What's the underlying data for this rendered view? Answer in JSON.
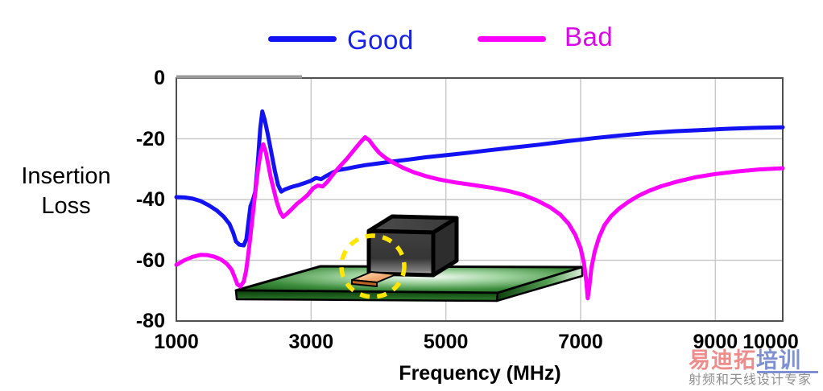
{
  "legend": {
    "items": [
      {
        "label": "Good",
        "color": "#1212f2",
        "label_color": "#1520ea"
      },
      {
        "label": "Bad",
        "color": "#fb00fb",
        "label_color": "#d90ae8"
      }
    ]
  },
  "axes": {
    "ylabel_line1": "Insertion",
    "ylabel_line2": "Loss",
    "xlabel": "Frequency (MHz)"
  },
  "chart_data": {
    "type": "line",
    "title": "",
    "xlabel": "Frequency (MHz)",
    "ylabel": "Insertion Loss",
    "xlim": [
      1000,
      10000
    ],
    "ylim": [
      -80,
      0
    ],
    "x_ticks": [
      1000,
      3000,
      5000,
      7000,
      9000,
      10000
    ],
    "y_ticks": [
      0,
      -20,
      -40,
      -60,
      -80
    ],
    "grid": true,
    "legend_position": "top",
    "series": [
      {
        "name": "Good",
        "color": "#1212f2",
        "points": [
          [
            1000,
            -39.2
          ],
          [
            1120,
            -39.3
          ],
          [
            1240,
            -39.7
          ],
          [
            1360,
            -40.5
          ],
          [
            1480,
            -41.9
          ],
          [
            1600,
            -43.6
          ],
          [
            1700,
            -45.6
          ],
          [
            1790,
            -48.1
          ],
          [
            1845,
            -51
          ],
          [
            1885,
            -53.8
          ],
          [
            1935,
            -54.9
          ],
          [
            2000,
            -55.1
          ],
          [
            2040,
            -53
          ],
          [
            2070,
            -47.5
          ],
          [
            2100,
            -42.2
          ],
          [
            2135,
            -40.2
          ],
          [
            2170,
            -37.5
          ],
          [
            2205,
            -29
          ],
          [
            2245,
            -16.5
          ],
          [
            2275,
            -11
          ],
          [
            2310,
            -13.6
          ],
          [
            2355,
            -18.3
          ],
          [
            2410,
            -24.6
          ],
          [
            2460,
            -30.4
          ],
          [
            2510,
            -35.2
          ],
          [
            2556,
            -37.4
          ],
          [
            2610,
            -36.7
          ],
          [
            2680,
            -36.1
          ],
          [
            2750,
            -35.6
          ],
          [
            2820,
            -35.2
          ],
          [
            2900,
            -34.6
          ],
          [
            3000,
            -33.8
          ],
          [
            3070,
            -32.9
          ],
          [
            3150,
            -33.3
          ],
          [
            3220,
            -32.3
          ],
          [
            3310,
            -31.2
          ],
          [
            3400,
            -30.3
          ],
          [
            3510,
            -29.9
          ],
          [
            3650,
            -29.3
          ],
          [
            3800,
            -28.7
          ],
          [
            4000,
            -28.1
          ],
          [
            4200,
            -27.5
          ],
          [
            4430,
            -26.9
          ],
          [
            4700,
            -26.1
          ],
          [
            5000,
            -25.4
          ],
          [
            5300,
            -24.7
          ],
          [
            5600,
            -23.9
          ],
          [
            6000,
            -22.9
          ],
          [
            6400,
            -21.9
          ],
          [
            6800,
            -20.8
          ],
          [
            7200,
            -19.8
          ],
          [
            7600,
            -18.9
          ],
          [
            8000,
            -18.1
          ],
          [
            8400,
            -17.5
          ],
          [
            8800,
            -17.1
          ],
          [
            9200,
            -16.7
          ],
          [
            9600,
            -16.4
          ],
          [
            10000,
            -16.2
          ]
        ]
      },
      {
        "name": "Bad",
        "color": "#fb00fb",
        "points": [
          [
            1000,
            -61.5
          ],
          [
            1120,
            -60
          ],
          [
            1240,
            -58.9
          ],
          [
            1360,
            -58.2
          ],
          [
            1460,
            -58.3
          ],
          [
            1560,
            -58.8
          ],
          [
            1660,
            -59.7
          ],
          [
            1750,
            -61.2
          ],
          [
            1820,
            -63.1
          ],
          [
            1865,
            -65.6
          ],
          [
            1905,
            -67.9
          ],
          [
            1950,
            -68.6
          ],
          [
            2000,
            -67
          ],
          [
            2035,
            -63.5
          ],
          [
            2065,
            -58.5
          ],
          [
            2095,
            -53
          ],
          [
            2130,
            -46
          ],
          [
            2170,
            -38
          ],
          [
            2210,
            -30.5
          ],
          [
            2250,
            -24.6
          ],
          [
            2290,
            -21.8
          ],
          [
            2325,
            -24.2
          ],
          [
            2360,
            -28
          ],
          [
            2400,
            -32.6
          ],
          [
            2445,
            -36.7
          ],
          [
            2490,
            -40.8
          ],
          [
            2540,
            -44.1
          ],
          [
            2585,
            -45.7
          ],
          [
            2645,
            -44.6
          ],
          [
            2710,
            -43.2
          ],
          [
            2790,
            -41.4
          ],
          [
            2865,
            -40.1
          ],
          [
            2950,
            -38.5
          ],
          [
            3030,
            -36.3
          ],
          [
            3100,
            -35.4
          ],
          [
            3170,
            -35.7
          ],
          [
            3240,
            -34.2
          ],
          [
            3330,
            -31.6
          ],
          [
            3430,
            -29
          ],
          [
            3530,
            -26.6
          ],
          [
            3630,
            -23.9
          ],
          [
            3730,
            -21.2
          ],
          [
            3800,
            -19.5
          ],
          [
            3865,
            -20.5
          ],
          [
            3930,
            -22.5
          ],
          [
            4010,
            -24.6
          ],
          [
            4110,
            -26.4
          ],
          [
            4230,
            -28
          ],
          [
            4360,
            -29.5
          ],
          [
            4520,
            -31
          ],
          [
            4700,
            -32.3
          ],
          [
            4900,
            -33.4
          ],
          [
            5150,
            -34.4
          ],
          [
            5400,
            -35.2
          ],
          [
            5700,
            -36.2
          ],
          [
            5950,
            -37.3
          ],
          [
            6150,
            -38.5
          ],
          [
            6350,
            -40.3
          ],
          [
            6550,
            -42.6
          ],
          [
            6700,
            -45
          ],
          [
            6820,
            -47.9
          ],
          [
            6920,
            -51.6
          ],
          [
            7000,
            -56
          ],
          [
            7050,
            -61
          ],
          [
            7085,
            -67
          ],
          [
            7105,
            -72.5
          ],
          [
            7125,
            -69.5
          ],
          [
            7160,
            -62.5
          ],
          [
            7210,
            -57
          ],
          [
            7275,
            -52.4
          ],
          [
            7355,
            -48.4
          ],
          [
            7455,
            -45.4
          ],
          [
            7570,
            -43
          ],
          [
            7700,
            -40.9
          ],
          [
            7850,
            -38.9
          ],
          [
            8010,
            -37.2
          ],
          [
            8200,
            -35.6
          ],
          [
            8450,
            -34
          ],
          [
            8700,
            -32.7
          ],
          [
            9000,
            -31.6
          ],
          [
            9300,
            -30.8
          ],
          [
            9650,
            -30.1
          ],
          [
            10000,
            -29.7
          ]
        ]
      }
    ]
  },
  "inset": {
    "name": "component-on-pcb-illustration",
    "highlight_color": "#ffe600"
  },
  "watermark": {
    "logo_left": "易迪拓",
    "logo_right": "培训",
    "logo_left_color": "#ee8c8c",
    "logo_right_color": "#7e90d2",
    "subtitle": "射频和天线设计专家",
    "subtitle_color": "#8f8f8f"
  }
}
